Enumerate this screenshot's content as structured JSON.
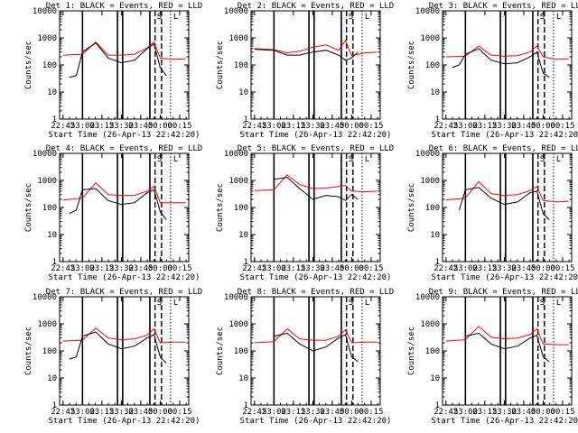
{
  "chart_data": {
    "type": "line",
    "layout": "3x3 grid",
    "y_scale": "log",
    "ylim": [
      1,
      10000
    ],
    "ylabel": "Counts/sec",
    "xlabel": "Start Time (26-Apr-13 22:42:20)",
    "x_range": [
      "22:42:20",
      "00:22:00"
    ],
    "x_ticks": [
      "22:45",
      "23:00",
      "23:15",
      "23:30",
      "23:45",
      "00:00",
      "00:15"
    ],
    "y_ticks": [
      "1",
      "10",
      "100",
      "1000",
      "10000"
    ],
    "colors": {
      "events": "#000000",
      "lld": "#ff0000"
    },
    "solid_markers": [
      "23:00",
      "23:27",
      "23:31",
      "23:52"
    ],
    "dashed_markers": [
      "23:56",
      "00:01"
    ],
    "dotted_markers": [
      "00:08"
    ],
    "marker_letters": [
      "S",
      "L"
    ],
    "panels": [
      {
        "title": "Det 1: BLACK = Events, RED = LLD",
        "events": [
          [
            22.83,
            35
          ],
          [
            22.92,
            40
          ],
          [
            23.0,
            300
          ],
          [
            23.17,
            650
          ],
          [
            23.33,
            180
          ],
          [
            23.5,
            120
          ],
          [
            23.67,
            150
          ],
          [
            23.83,
            400
          ],
          [
            23.92,
            600
          ],
          [
            24.0,
            80
          ],
          [
            24.08,
            40
          ]
        ],
        "lld": [
          [
            22.75,
            230
          ],
          [
            23.0,
            250
          ],
          [
            23.17,
            700
          ],
          [
            23.33,
            230
          ],
          [
            23.5,
            230
          ],
          [
            23.67,
            250
          ],
          [
            23.83,
            420
          ],
          [
            23.92,
            700
          ],
          [
            24.0,
            180
          ],
          [
            24.17,
            160
          ],
          [
            24.33,
            170
          ]
        ]
      },
      {
        "title": "Det 2: BLACK = Events, RED = LLD",
        "events": [
          [
            22.75,
            380
          ],
          [
            23.0,
            350
          ],
          [
            23.17,
            230
          ],
          [
            23.33,
            230
          ],
          [
            23.5,
            300
          ],
          [
            23.67,
            350
          ],
          [
            23.83,
            230
          ],
          [
            23.92,
            150
          ],
          [
            24.0,
            180
          ],
          [
            24.08,
            300
          ]
        ],
        "lld": [
          [
            22.75,
            400
          ],
          [
            23.0,
            370
          ],
          [
            23.17,
            280
          ],
          [
            23.33,
            320
          ],
          [
            23.5,
            450
          ],
          [
            23.67,
            550
          ],
          [
            23.83,
            350
          ],
          [
            23.92,
            800
          ],
          [
            24.0,
            220
          ],
          [
            24.17,
            280
          ],
          [
            24.33,
            300
          ]
        ]
      },
      {
        "title": "Det 3: BLACK = Events, RED = LLD",
        "events": [
          [
            22.83,
            80
          ],
          [
            22.92,
            100
          ],
          [
            23.0,
            250
          ],
          [
            23.17,
            400
          ],
          [
            23.33,
            150
          ],
          [
            23.5,
            110
          ],
          [
            23.67,
            120
          ],
          [
            23.83,
            200
          ],
          [
            23.92,
            300
          ],
          [
            24.0,
            50
          ],
          [
            24.08,
            35
          ]
        ],
        "lld": [
          [
            22.75,
            200
          ],
          [
            23.0,
            210
          ],
          [
            23.17,
            500
          ],
          [
            23.33,
            230
          ],
          [
            23.5,
            210
          ],
          [
            23.67,
            220
          ],
          [
            23.83,
            300
          ],
          [
            23.92,
            500
          ],
          [
            24.0,
            200
          ],
          [
            24.17,
            160
          ],
          [
            24.33,
            170
          ]
        ]
      },
      {
        "title": "Det 4: BLACK = Events, RED = LLD",
        "events": [
          [
            22.83,
            60
          ],
          [
            22.92,
            80
          ],
          [
            23.0,
            450
          ],
          [
            23.17,
            500
          ],
          [
            23.33,
            180
          ],
          [
            23.5,
            130
          ],
          [
            23.67,
            150
          ],
          [
            23.83,
            350
          ],
          [
            23.92,
            450
          ],
          [
            24.0,
            70
          ],
          [
            24.08,
            35
          ]
        ],
        "lld": [
          [
            22.75,
            190
          ],
          [
            23.0,
            220
          ],
          [
            23.17,
            800
          ],
          [
            23.33,
            300
          ],
          [
            23.5,
            280
          ],
          [
            23.67,
            280
          ],
          [
            23.83,
            400
          ],
          [
            23.92,
            600
          ],
          [
            24.0,
            150
          ],
          [
            24.17,
            150
          ],
          [
            24.33,
            150
          ]
        ]
      },
      {
        "title": "Det 5: BLACK = Events, RED = LLD",
        "events": [
          [
            23.0,
            1100
          ],
          [
            23.17,
            1300
          ],
          [
            23.33,
            500
          ],
          [
            23.5,
            200
          ],
          [
            23.67,
            280
          ],
          [
            23.83,
            250
          ],
          [
            23.92,
            180
          ],
          [
            24.0,
            300
          ],
          [
            24.08,
            200
          ]
        ],
        "lld": [
          [
            22.75,
            420
          ],
          [
            23.0,
            450
          ],
          [
            23.17,
            1600
          ],
          [
            23.33,
            700
          ],
          [
            23.5,
            500
          ],
          [
            23.67,
            520
          ],
          [
            23.83,
            600
          ],
          [
            23.92,
            650
          ],
          [
            24.0,
            400
          ],
          [
            24.17,
            380
          ],
          [
            24.33,
            400
          ]
        ]
      },
      {
        "title": "Det 6: BLACK = Events, RED = LLD",
        "events": [
          [
            22.92,
            80
          ],
          [
            23.0,
            450
          ],
          [
            23.17,
            550
          ],
          [
            23.33,
            220
          ],
          [
            23.5,
            130
          ],
          [
            23.67,
            160
          ],
          [
            23.83,
            350
          ],
          [
            23.92,
            400
          ],
          [
            24.0,
            60
          ],
          [
            24.08,
            35
          ]
        ],
        "lld": [
          [
            22.75,
            190
          ],
          [
            23.0,
            220
          ],
          [
            23.17,
            900
          ],
          [
            23.33,
            320
          ],
          [
            23.5,
            280
          ],
          [
            23.67,
            300
          ],
          [
            23.83,
            420
          ],
          [
            23.92,
            600
          ],
          [
            24.0,
            180
          ],
          [
            24.17,
            160
          ],
          [
            24.33,
            170
          ]
        ]
      },
      {
        "title": "Det 7: BLACK = Events, RED = LLD",
        "events": [
          [
            22.83,
            50
          ],
          [
            22.92,
            60
          ],
          [
            23.0,
            350
          ],
          [
            23.17,
            500
          ],
          [
            23.33,
            180
          ],
          [
            23.5,
            120
          ],
          [
            23.67,
            150
          ],
          [
            23.83,
            300
          ],
          [
            23.92,
            400
          ],
          [
            24.0,
            60
          ],
          [
            24.08,
            35
          ]
        ],
        "lld": [
          [
            22.75,
            230
          ],
          [
            23.0,
            250
          ],
          [
            23.17,
            700
          ],
          [
            23.33,
            300
          ],
          [
            23.5,
            260
          ],
          [
            23.67,
            280
          ],
          [
            23.83,
            380
          ],
          [
            23.92,
            650
          ],
          [
            24.0,
            200
          ],
          [
            24.17,
            210
          ],
          [
            24.33,
            210
          ]
        ]
      },
      {
        "title": "Det 8: BLACK = Events, RED = LLD",
        "events": [
          [
            23.0,
            350
          ],
          [
            23.17,
            450
          ],
          [
            23.33,
            180
          ],
          [
            23.5,
            100
          ],
          [
            23.67,
            140
          ],
          [
            23.83,
            300
          ],
          [
            23.92,
            400
          ],
          [
            24.0,
            60
          ],
          [
            24.08,
            40
          ]
        ],
        "lld": [
          [
            22.75,
            200
          ],
          [
            23.0,
            220
          ],
          [
            23.17,
            650
          ],
          [
            23.33,
            280
          ],
          [
            23.5,
            250
          ],
          [
            23.67,
            250
          ],
          [
            23.83,
            350
          ],
          [
            23.92,
            600
          ],
          [
            24.0,
            200
          ],
          [
            24.17,
            210
          ],
          [
            24.33,
            210
          ]
        ]
      },
      {
        "title": "Det 9: BLACK = Events, RED = LLD",
        "events": [
          [
            23.0,
            350
          ],
          [
            23.17,
            450
          ],
          [
            23.33,
            180
          ],
          [
            23.5,
            120
          ],
          [
            23.67,
            150
          ],
          [
            23.83,
            300
          ],
          [
            23.92,
            380
          ],
          [
            24.0,
            60
          ],
          [
            24.08,
            40
          ]
        ],
        "lld": [
          [
            22.75,
            230
          ],
          [
            23.0,
            260
          ],
          [
            23.17,
            800
          ],
          [
            23.33,
            320
          ],
          [
            23.5,
            280
          ],
          [
            23.67,
            300
          ],
          [
            23.83,
            400
          ],
          [
            23.92,
            650
          ],
          [
            24.0,
            180
          ],
          [
            24.17,
            170
          ],
          [
            24.33,
            170
          ]
        ]
      }
    ]
  }
}
